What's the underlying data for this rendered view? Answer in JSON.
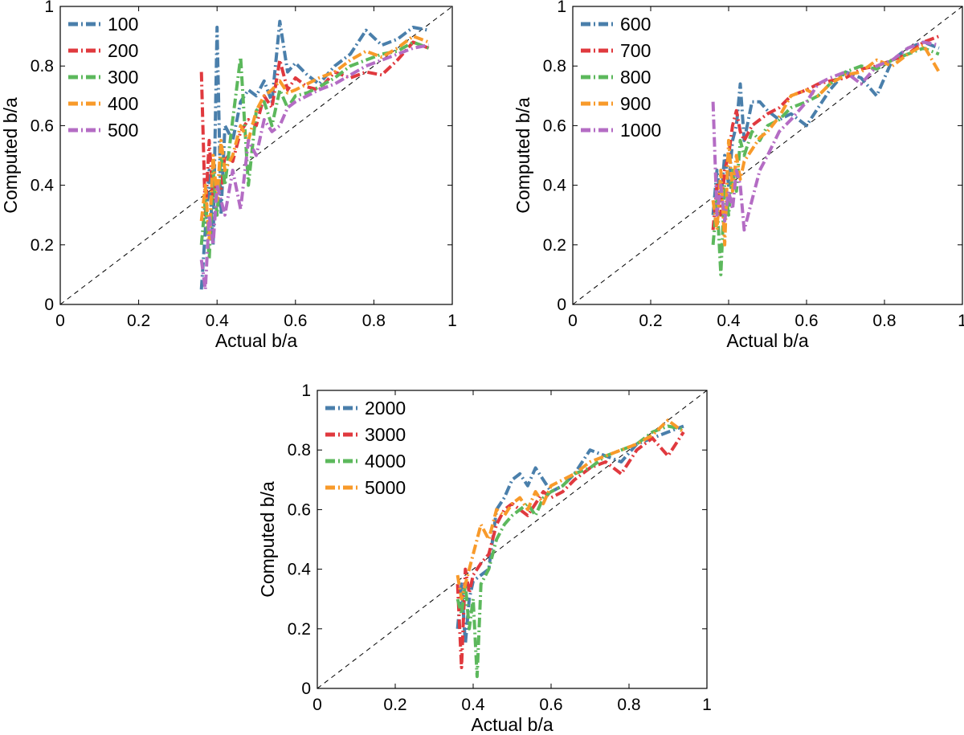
{
  "chart_data": [
    {
      "type": "line",
      "xlabel": "Actual b/a",
      "ylabel": "Computed b/a",
      "xlim": [
        0,
        1
      ],
      "ylim": [
        0,
        1
      ],
      "xticks": [
        "0",
        "0.2",
        "0.4",
        "0.6",
        "0.8",
        "1"
      ],
      "yticks": [
        "0",
        "0.2",
        "0.4",
        "0.6",
        "0.8",
        "1"
      ],
      "reference_line": "y = x",
      "legend_position": "top-left",
      "series": [
        {
          "name": "100",
          "color": "#4a7fab",
          "x": [
            0.36,
            0.37,
            0.38,
            0.39,
            0.4,
            0.41,
            0.42,
            0.44,
            0.46,
            0.48,
            0.5,
            0.52,
            0.54,
            0.56,
            0.58,
            0.6,
            0.63,
            0.66,
            0.7,
            0.74,
            0.78,
            0.82,
            0.86,
            0.9,
            0.94
          ],
          "y": [
            0.05,
            0.25,
            0.45,
            0.2,
            0.93,
            0.3,
            0.6,
            0.55,
            0.68,
            0.72,
            0.7,
            0.75,
            0.68,
            0.95,
            0.78,
            0.81,
            0.77,
            0.74,
            0.8,
            0.84,
            0.92,
            0.87,
            0.89,
            0.93,
            0.92
          ]
        },
        {
          "name": "200",
          "color": "#e0393e",
          "x": [
            0.36,
            0.37,
            0.38,
            0.39,
            0.4,
            0.41,
            0.42,
            0.44,
            0.46,
            0.48,
            0.5,
            0.52,
            0.54,
            0.56,
            0.58,
            0.6,
            0.63,
            0.66,
            0.7,
            0.74,
            0.78,
            0.82,
            0.86,
            0.9,
            0.94
          ],
          "y": [
            0.78,
            0.3,
            0.55,
            0.35,
            0.42,
            0.38,
            0.5,
            0.48,
            0.58,
            0.62,
            0.6,
            0.7,
            0.66,
            0.82,
            0.72,
            0.76,
            0.73,
            0.72,
            0.78,
            0.76,
            0.78,
            0.77,
            0.82,
            0.88,
            0.86
          ]
        },
        {
          "name": "300",
          "color": "#5cb85c",
          "x": [
            0.36,
            0.37,
            0.38,
            0.39,
            0.4,
            0.41,
            0.42,
            0.44,
            0.46,
            0.48,
            0.5,
            0.52,
            0.54,
            0.56,
            0.58,
            0.6,
            0.63,
            0.66,
            0.7,
            0.74,
            0.78,
            0.82,
            0.86,
            0.9,
            0.94
          ],
          "y": [
            0.2,
            0.35,
            0.15,
            0.45,
            0.3,
            0.5,
            0.4,
            0.62,
            0.83,
            0.4,
            0.65,
            0.68,
            0.6,
            0.72,
            0.66,
            0.7,
            0.71,
            0.73,
            0.76,
            0.8,
            0.82,
            0.84,
            0.85,
            0.88,
            0.86
          ]
        },
        {
          "name": "400",
          "color": "#f89a2a",
          "x": [
            0.36,
            0.37,
            0.38,
            0.39,
            0.4,
            0.41,
            0.42,
            0.44,
            0.46,
            0.48,
            0.5,
            0.52,
            0.54,
            0.56,
            0.58,
            0.6,
            0.63,
            0.66,
            0.7,
            0.74,
            0.78,
            0.82,
            0.86,
            0.9,
            0.94
          ],
          "y": [
            0.28,
            0.4,
            0.22,
            0.5,
            0.35,
            0.55,
            0.45,
            0.5,
            0.6,
            0.55,
            0.65,
            0.7,
            0.72,
            0.75,
            0.71,
            0.72,
            0.74,
            0.76,
            0.78,
            0.82,
            0.85,
            0.83,
            0.86,
            0.9,
            0.88
          ]
        },
        {
          "name": "500",
          "color": "#b46cc4",
          "x": [
            0.36,
            0.37,
            0.38,
            0.39,
            0.4,
            0.41,
            0.42,
            0.44,
            0.46,
            0.48,
            0.5,
            0.52,
            0.54,
            0.56,
            0.58,
            0.6,
            0.63,
            0.66,
            0.7,
            0.74,
            0.78,
            0.82,
            0.86,
            0.9,
            0.94
          ],
          "y": [
            0.15,
            0.05,
            0.3,
            0.2,
            0.4,
            0.35,
            0.3,
            0.45,
            0.32,
            0.55,
            0.5,
            0.62,
            0.58,
            0.6,
            0.66,
            0.68,
            0.7,
            0.72,
            0.74,
            0.77,
            0.8,
            0.82,
            0.84,
            0.86,
            0.87
          ]
        }
      ]
    },
    {
      "type": "line",
      "xlabel": "Actual b/a",
      "ylabel": "Computed b/a",
      "xlim": [
        0,
        1
      ],
      "ylim": [
        0,
        1
      ],
      "xticks": [
        "0",
        "0.2",
        "0.4",
        "0.6",
        "0.8",
        "1"
      ],
      "yticks": [
        "0",
        "0.2",
        "0.4",
        "0.6",
        "0.8",
        "1"
      ],
      "reference_line": "y = x",
      "legend_position": "top-left",
      "series": [
        {
          "name": "600",
          "color": "#4a7fab",
          "x": [
            0.36,
            0.37,
            0.38,
            0.39,
            0.4,
            0.41,
            0.42,
            0.43,
            0.44,
            0.46,
            0.48,
            0.5,
            0.53,
            0.56,
            0.6,
            0.63,
            0.66,
            0.7,
            0.74,
            0.78,
            0.82,
            0.86,
            0.9,
            0.94
          ],
          "y": [
            0.3,
            0.45,
            0.35,
            0.5,
            0.4,
            0.55,
            0.6,
            0.74,
            0.55,
            0.68,
            0.68,
            0.65,
            0.62,
            0.64,
            0.6,
            0.66,
            0.72,
            0.78,
            0.76,
            0.7,
            0.82,
            0.86,
            0.88,
            0.86
          ]
        },
        {
          "name": "700",
          "color": "#e0393e",
          "x": [
            0.36,
            0.37,
            0.38,
            0.39,
            0.4,
            0.41,
            0.42,
            0.43,
            0.44,
            0.46,
            0.48,
            0.5,
            0.53,
            0.56,
            0.6,
            0.63,
            0.66,
            0.7,
            0.74,
            0.78,
            0.82,
            0.86,
            0.9,
            0.94
          ],
          "y": [
            0.25,
            0.4,
            0.3,
            0.45,
            0.5,
            0.6,
            0.65,
            0.58,
            0.55,
            0.6,
            0.62,
            0.64,
            0.66,
            0.7,
            0.72,
            0.74,
            0.75,
            0.76,
            0.79,
            0.8,
            0.82,
            0.84,
            0.88,
            0.9
          ]
        },
        {
          "name": "800",
          "color": "#5cb85c",
          "x": [
            0.36,
            0.37,
            0.38,
            0.39,
            0.4,
            0.41,
            0.42,
            0.43,
            0.44,
            0.46,
            0.48,
            0.5,
            0.53,
            0.56,
            0.6,
            0.63,
            0.66,
            0.7,
            0.74,
            0.78,
            0.82,
            0.86,
            0.9,
            0.94
          ],
          "y": [
            0.2,
            0.35,
            0.1,
            0.4,
            0.3,
            0.45,
            0.38,
            0.55,
            0.5,
            0.58,
            0.55,
            0.6,
            0.62,
            0.66,
            0.68,
            0.7,
            0.74,
            0.78,
            0.8,
            0.79,
            0.82,
            0.84,
            0.86,
            0.84
          ]
        },
        {
          "name": "900",
          "color": "#f89a2a",
          "x": [
            0.36,
            0.37,
            0.38,
            0.39,
            0.4,
            0.41,
            0.42,
            0.43,
            0.44,
            0.46,
            0.48,
            0.5,
            0.53,
            0.56,
            0.6,
            0.63,
            0.66,
            0.7,
            0.74,
            0.78,
            0.82,
            0.86,
            0.9,
            0.94
          ],
          "y": [
            0.35,
            0.25,
            0.45,
            0.2,
            0.55,
            0.38,
            0.5,
            0.42,
            0.48,
            0.52,
            0.56,
            0.58,
            0.63,
            0.7,
            0.72,
            0.7,
            0.74,
            0.77,
            0.78,
            0.82,
            0.8,
            0.84,
            0.87,
            0.78
          ]
        },
        {
          "name": "1000",
          "color": "#b46cc4",
          "x": [
            0.36,
            0.37,
            0.38,
            0.39,
            0.4,
            0.41,
            0.42,
            0.43,
            0.44,
            0.46,
            0.48,
            0.5,
            0.53,
            0.56,
            0.6,
            0.63,
            0.66,
            0.7,
            0.74,
            0.78,
            0.82,
            0.86,
            0.9,
            0.94
          ],
          "y": [
            0.68,
            0.3,
            0.4,
            0.28,
            0.38,
            0.32,
            0.45,
            0.4,
            0.25,
            0.35,
            0.45,
            0.5,
            0.58,
            0.62,
            0.68,
            0.74,
            0.76,
            0.78,
            0.74,
            0.8,
            0.82,
            0.86,
            0.88,
            0.87
          ]
        }
      ]
    },
    {
      "type": "line",
      "xlabel": "Actual b/a",
      "ylabel": "Computed b/a",
      "xlim": [
        0,
        1
      ],
      "ylim": [
        0,
        1
      ],
      "xticks": [
        "0",
        "0.2",
        "0.4",
        "0.6",
        "0.8",
        "1"
      ],
      "yticks": [
        "0",
        "0.2",
        "0.4",
        "0.6",
        "0.8",
        "1"
      ],
      "reference_line": "y = x",
      "legend_position": "top-left",
      "series": [
        {
          "name": "2000",
          "color": "#4a7fab",
          "x": [
            0.36,
            0.37,
            0.38,
            0.39,
            0.4,
            0.42,
            0.44,
            0.46,
            0.48,
            0.5,
            0.52,
            0.54,
            0.56,
            0.58,
            0.6,
            0.63,
            0.66,
            0.7,
            0.74,
            0.78,
            0.82,
            0.86,
            0.9,
            0.94
          ],
          "y": [
            0.2,
            0.35,
            0.15,
            0.3,
            0.36,
            0.38,
            0.4,
            0.6,
            0.64,
            0.7,
            0.72,
            0.68,
            0.74,
            0.7,
            0.66,
            0.68,
            0.72,
            0.8,
            0.78,
            0.76,
            0.82,
            0.84,
            0.86,
            0.88
          ]
        },
        {
          "name": "3000",
          "color": "#e0393e",
          "x": [
            0.36,
            0.37,
            0.38,
            0.39,
            0.4,
            0.42,
            0.44,
            0.46,
            0.48,
            0.5,
            0.52,
            0.54,
            0.56,
            0.58,
            0.6,
            0.63,
            0.66,
            0.7,
            0.74,
            0.78,
            0.82,
            0.86,
            0.9,
            0.94
          ],
          "y": [
            0.35,
            0.07,
            0.4,
            0.32,
            0.38,
            0.42,
            0.45,
            0.55,
            0.6,
            0.62,
            0.6,
            0.58,
            0.62,
            0.66,
            0.64,
            0.66,
            0.7,
            0.74,
            0.76,
            0.72,
            0.8,
            0.84,
            0.78,
            0.86
          ]
        },
        {
          "name": "4000",
          "color": "#5cb85c",
          "x": [
            0.36,
            0.37,
            0.38,
            0.39,
            0.4,
            0.41,
            0.42,
            0.44,
            0.46,
            0.48,
            0.5,
            0.52,
            0.54,
            0.56,
            0.58,
            0.6,
            0.63,
            0.66,
            0.7,
            0.74,
            0.78,
            0.82,
            0.86,
            0.9,
            0.94
          ],
          "y": [
            0.3,
            0.25,
            0.35,
            0.2,
            0.3,
            0.04,
            0.35,
            0.4,
            0.5,
            0.55,
            0.58,
            0.6,
            0.62,
            0.58,
            0.64,
            0.66,
            0.68,
            0.72,
            0.74,
            0.78,
            0.8,
            0.82,
            0.86,
            0.88,
            0.87
          ]
        },
        {
          "name": "5000",
          "color": "#f89a2a",
          "x": [
            0.36,
            0.37,
            0.38,
            0.39,
            0.4,
            0.42,
            0.44,
            0.46,
            0.48,
            0.5,
            0.52,
            0.54,
            0.56,
            0.58,
            0.6,
            0.63,
            0.66,
            0.7,
            0.74,
            0.78,
            0.82,
            0.86,
            0.9,
            0.94
          ],
          "y": [
            0.38,
            0.3,
            0.35,
            0.4,
            0.45,
            0.55,
            0.5,
            0.6,
            0.58,
            0.62,
            0.64,
            0.6,
            0.66,
            0.62,
            0.68,
            0.7,
            0.72,
            0.76,
            0.78,
            0.8,
            0.82,
            0.85,
            0.9,
            0.86
          ]
        }
      ]
    }
  ]
}
